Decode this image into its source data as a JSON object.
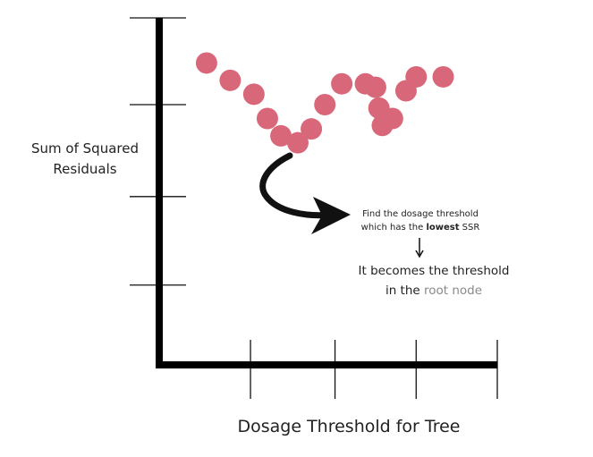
{
  "chart_data": {
    "type": "scatter",
    "title": "",
    "xlabel": "Dosage Threshold for Tree",
    "ylabel_lines": [
      "Sum of Squared",
      "Residuals"
    ],
    "xlim": [
      0,
      100
    ],
    "ylim": [
      0,
      100
    ],
    "grid": false,
    "point_color": "#d9677a",
    "x": [
      14,
      21,
      28,
      32,
      36,
      41,
      45,
      49,
      54,
      61,
      64,
      65,
      66,
      69,
      73,
      76,
      84
    ],
    "y": [
      87,
      82,
      78,
      71,
      66,
      64,
      68,
      75,
      81,
      81,
      80,
      74,
      69,
      71,
      79,
      83,
      83
    ],
    "annotations": {
      "note_before": "Find the dosage threshold",
      "note_line2_before": "which has the ",
      "note_bold": "lowest",
      "note_after": " SSR",
      "result_line1": "It becomes the threshold",
      "result_line2_before": "in the ",
      "result_line2_grey": "root node"
    }
  }
}
